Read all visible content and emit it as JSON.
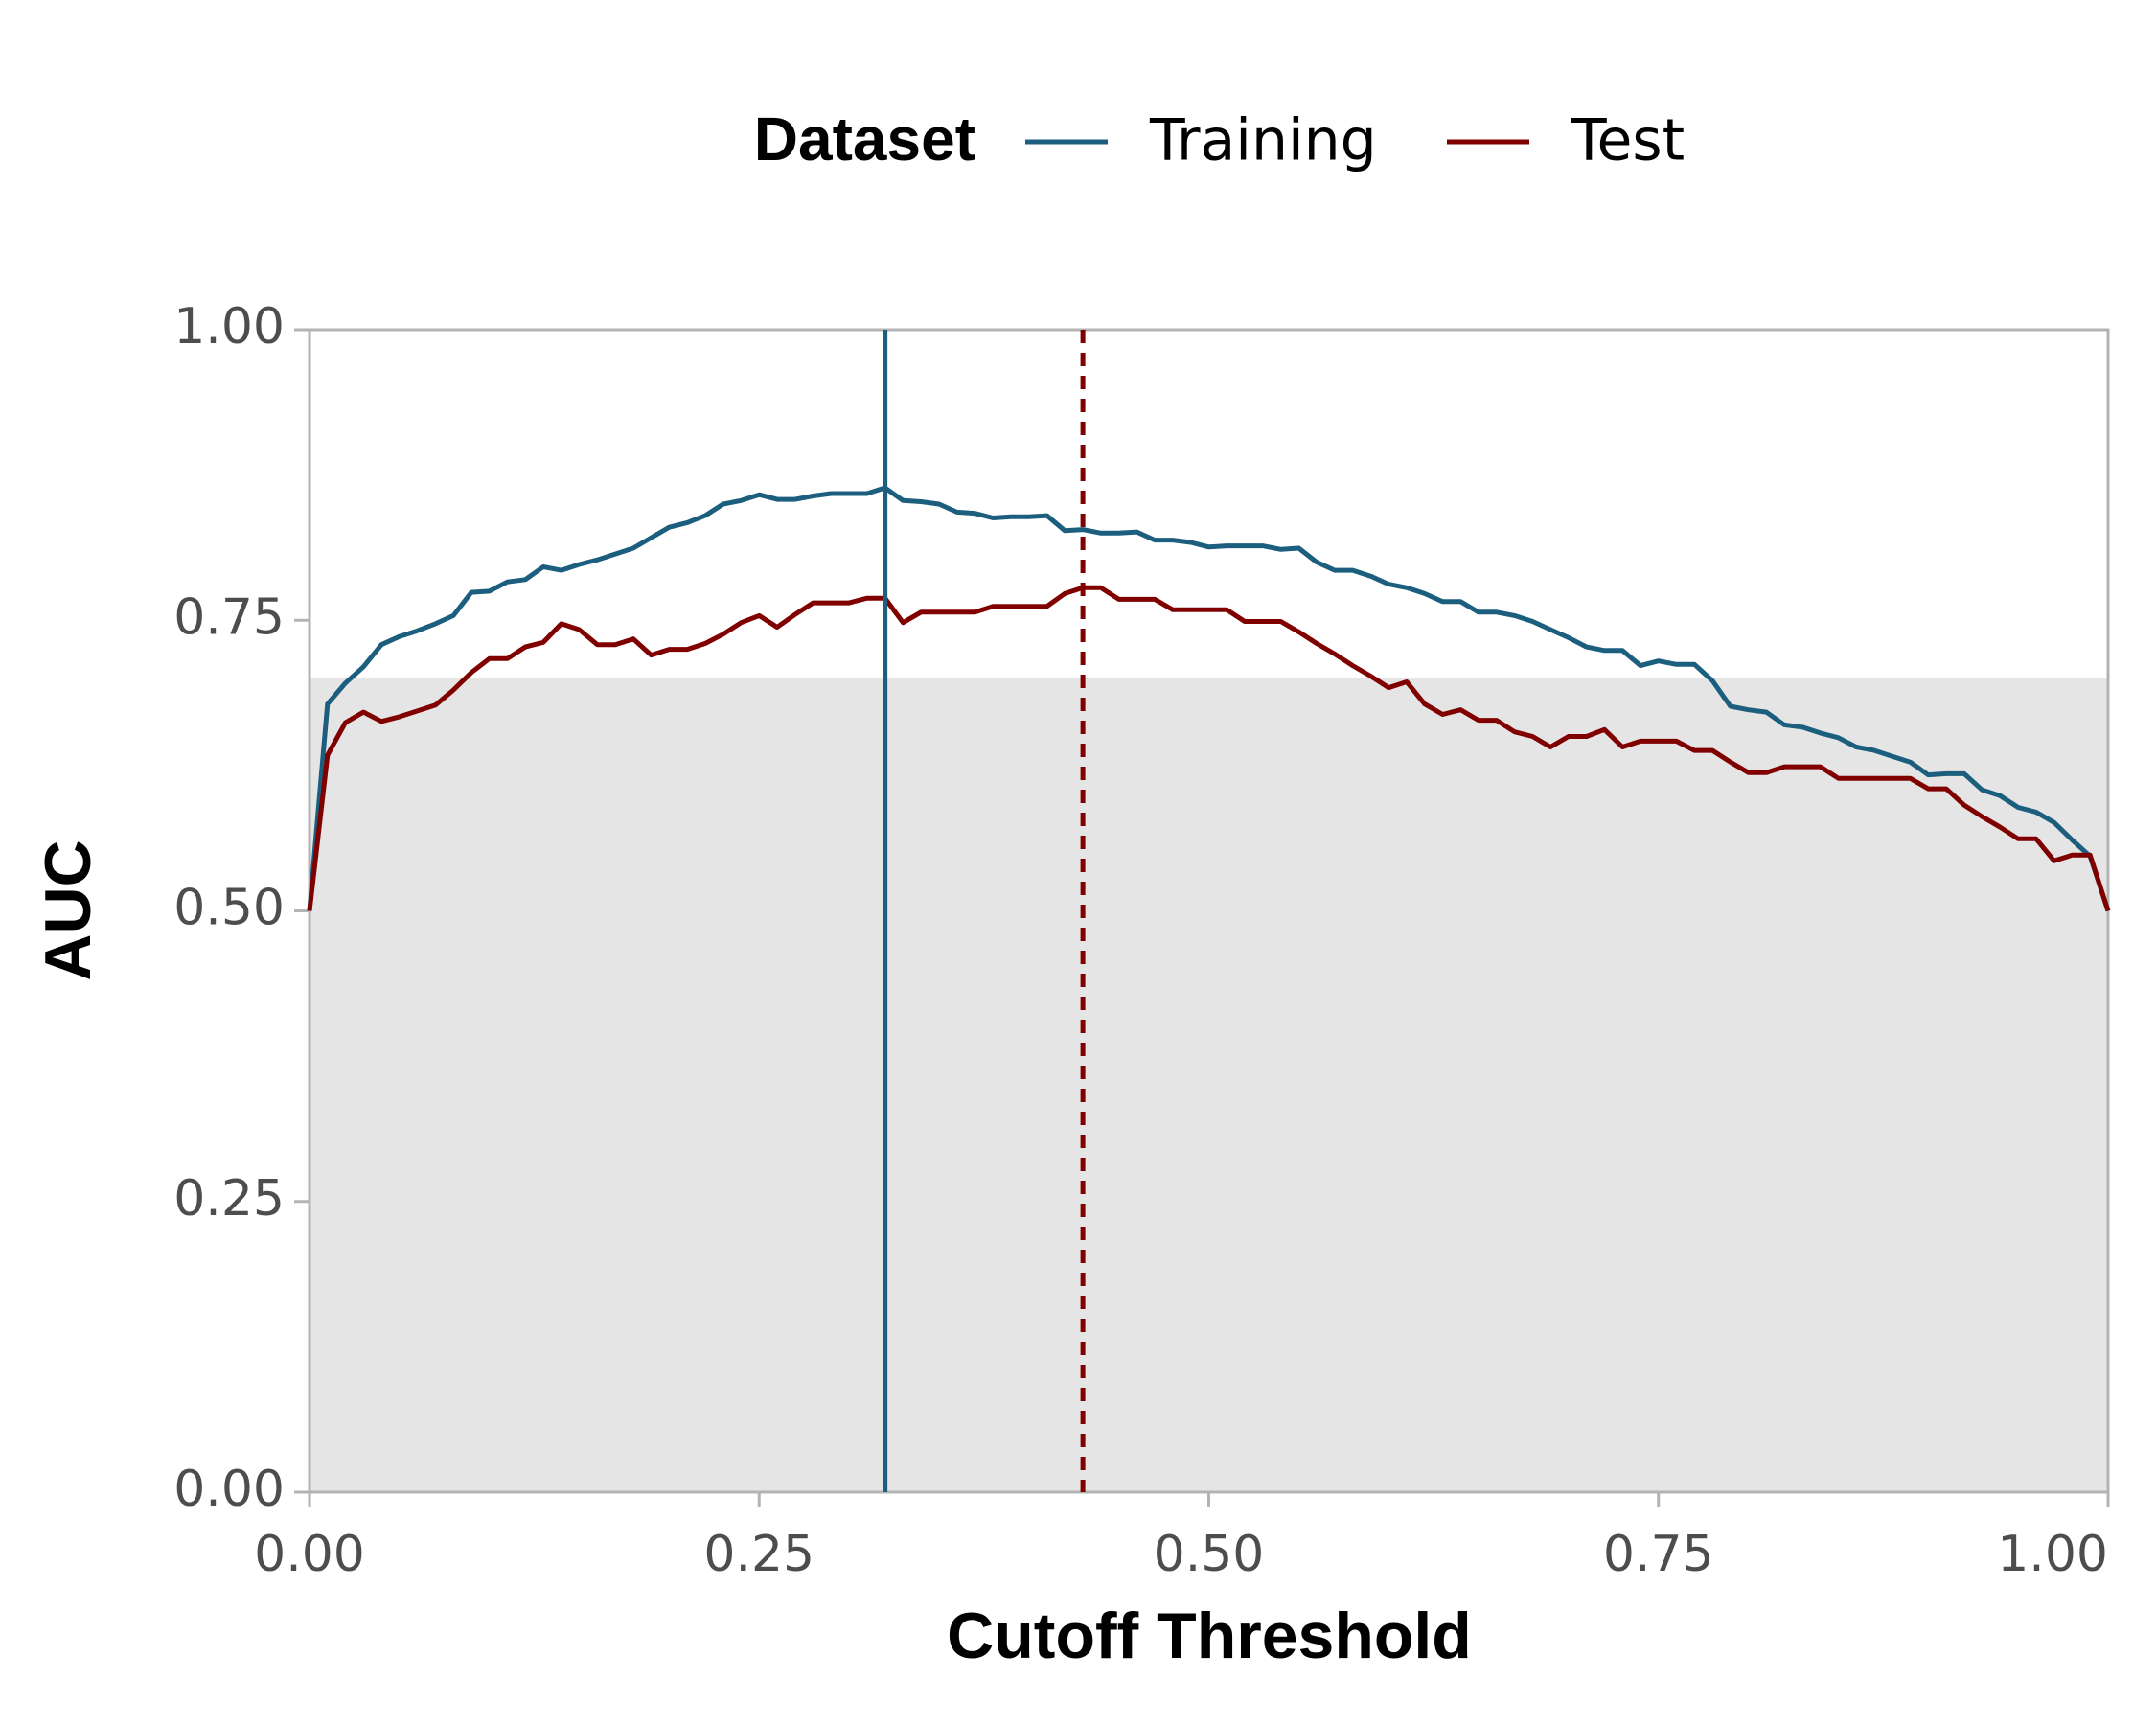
{
  "chart_data": {
    "type": "line",
    "x_label": "Cutoff Threshold",
    "y_label": "AUC",
    "legend_title": "Dataset",
    "legend_position": "top",
    "xlim": [
      0,
      1
    ],
    "ylim": [
      0,
      1
    ],
    "xticks": [
      {
        "value": 0,
        "label": "0.00"
      },
      {
        "value": 0.25,
        "label": "0.25"
      },
      {
        "value": 0.5,
        "label": "0.50"
      },
      {
        "value": 0.75,
        "label": "0.75"
      },
      {
        "value": 1,
        "label": "1.00"
      }
    ],
    "yticks": [
      {
        "value": 0,
        "label": "0.00"
      },
      {
        "value": 0.25,
        "label": "0.25"
      },
      {
        "value": 0.5,
        "label": "0.50"
      },
      {
        "value": 0.75,
        "label": "0.75"
      },
      {
        "value": 1,
        "label": "1.00"
      }
    ],
    "band": {
      "ymin": 0,
      "ymax": 0.7,
      "color": "#e5e5e5"
    },
    "x": [
      0,
      0.01,
      0.02,
      0.03,
      0.04,
      0.05,
      0.06,
      0.07,
      0.08,
      0.09,
      0.1,
      0.11,
      0.12,
      0.13,
      0.14,
      0.15,
      0.16,
      0.17,
      0.18,
      0.19,
      0.2,
      0.21,
      0.22,
      0.23,
      0.24,
      0.25,
      0.26,
      0.27,
      0.28,
      0.29,
      0.3,
      0.31,
      0.32,
      0.33,
      0.34,
      0.35,
      0.36,
      0.37,
      0.38,
      0.39,
      0.4,
      0.41,
      0.42,
      0.43,
      0.44,
      0.45,
      0.46,
      0.47,
      0.48,
      0.49,
      0.5,
      0.51,
      0.52,
      0.53,
      0.54,
      0.55,
      0.56,
      0.57,
      0.58,
      0.59,
      0.6,
      0.61,
      0.62,
      0.63,
      0.64,
      0.65,
      0.66,
      0.67,
      0.68,
      0.69,
      0.7,
      0.71,
      0.72,
      0.73,
      0.74,
      0.75,
      0.76,
      0.77,
      0.78,
      0.79,
      0.8,
      0.81,
      0.82,
      0.83,
      0.84,
      0.85,
      0.86,
      0.87,
      0.88,
      0.89,
      0.9,
      0.91,
      0.92,
      0.93,
      0.94,
      0.95,
      0.96,
      0.97,
      0.98,
      0.99,
      1
    ],
    "series": [
      {
        "name": "Training",
        "color": "#1b5e7e",
        "values": [
          0.5,
          0.678,
          0.696,
          0.71,
          0.729,
          0.736,
          0.741,
          0.747,
          0.754,
          0.774,
          0.775,
          0.783,
          0.785,
          0.796,
          0.793,
          0.798,
          0.802,
          0.807,
          0.812,
          0.821,
          0.83,
          0.834,
          0.84,
          0.85,
          0.853,
          0.858,
          0.854,
          0.854,
          0.857,
          0.859,
          0.859,
          0.859,
          0.864,
          0.853,
          0.852,
          0.85,
          0.843,
          0.842,
          0.838,
          0.839,
          0.839,
          0.84,
          0.827,
          0.828,
          0.825,
          0.825,
          0.826,
          0.819,
          0.819,
          0.817,
          0.813,
          0.814,
          0.814,
          0.814,
          0.811,
          0.812,
          0.8,
          0.793,
          0.793,
          0.788,
          0.781,
          0.778,
          0.773,
          0.766,
          0.766,
          0.757,
          0.757,
          0.754,
          0.749,
          0.742,
          0.735,
          0.727,
          0.724,
          0.724,
          0.711,
          0.715,
          0.712,
          0.712,
          0.698,
          0.676,
          0.673,
          0.671,
          0.66,
          0.658,
          0.653,
          0.649,
          0.641,
          0.638,
          0.633,
          0.628,
          0.617,
          0.618,
          0.618,
          0.604,
          0.599,
          0.589,
          0.585,
          0.576,
          0.561,
          0.547,
          0.5
        ]
      },
      {
        "name": "Test",
        "color": "#800000",
        "values": [
          0.5,
          0.634,
          0.662,
          0.671,
          0.663,
          0.667,
          0.672,
          0.677,
          0.69,
          0.705,
          0.717,
          0.717,
          0.727,
          0.731,
          0.747,
          0.742,
          0.729,
          0.729,
          0.734,
          0.72,
          0.725,
          0.725,
          0.73,
          0.738,
          0.748,
          0.754,
          0.744,
          0.755,
          0.765,
          0.765,
          0.765,
          0.769,
          0.769,
          0.748,
          0.757,
          0.757,
          0.757,
          0.757,
          0.762,
          0.762,
          0.762,
          0.762,
          0.773,
          0.778,
          0.778,
          0.768,
          0.768,
          0.768,
          0.759,
          0.759,
          0.759,
          0.759,
          0.749,
          0.749,
          0.749,
          0.74,
          0.73,
          0.721,
          0.711,
          0.702,
          0.692,
          0.697,
          0.678,
          0.669,
          0.673,
          0.664,
          0.664,
          0.654,
          0.65,
          0.641,
          0.65,
          0.65,
          0.656,
          0.641,
          0.646,
          0.646,
          0.646,
          0.638,
          0.638,
          0.628,
          0.619,
          0.619,
          0.624,
          0.624,
          0.624,
          0.614,
          0.614,
          0.614,
          0.614,
          0.614,
          0.605,
          0.605,
          0.591,
          0.581,
          0.572,
          0.562,
          0.562,
          0.543,
          0.548,
          0.548,
          0.5
        ]
      }
    ],
    "vlines": [
      {
        "x": 0.32,
        "color": "#1b5e7e",
        "style": "solid"
      },
      {
        "x": 0.43,
        "color": "#800000",
        "style": "dashed"
      }
    ]
  }
}
